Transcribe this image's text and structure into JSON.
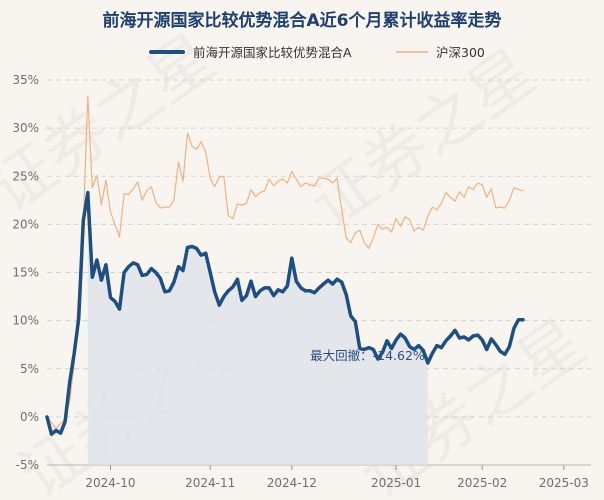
{
  "chart_data": {
    "type": "line",
    "title": "前海开源国家比较优势混合A近6个月累计收益率走势",
    "xlabel": "",
    "ylabel": "",
    "ylim": [
      -5,
      35
    ],
    "y_ticks": [
      "35%",
      "30%",
      "25%",
      "20%",
      "15%",
      "10%",
      "5%",
      "0%",
      "-5%"
    ],
    "y_tick_values": [
      35,
      30,
      25,
      20,
      15,
      10,
      5,
      0,
      -5
    ],
    "x_range": [
      0,
      120
    ],
    "x_ticks": [
      "2024-10",
      "2024-11",
      "2024-12",
      "2025-01",
      "2025-02",
      "2025-03"
    ],
    "x_tick_values": [
      14,
      36,
      54,
      77,
      96,
      114
    ],
    "grid": true,
    "legend_position": "top",
    "series": [
      {
        "name": "前海开源国家比较优势混合A",
        "color": "#1e4f82",
        "values": [
          0,
          -1.8,
          -1.4,
          -1.7,
          -0.5,
          3.6,
          6.6,
          10.2,
          20.4,
          23.3,
          14.5,
          16.3,
          14.2,
          15.8,
          12.4,
          12.0,
          11.2,
          15.0,
          15.6,
          16.0,
          15.8,
          14.7,
          14.8,
          15.4,
          15.0,
          14.4,
          13.0,
          13.1,
          14.0,
          15.6,
          15.2,
          17.6,
          17.7,
          17.5,
          16.8,
          17.0,
          15.0,
          13.0,
          11.6,
          12.5,
          13.1,
          13.5,
          14.3,
          12.1,
          12.6,
          14.1,
          12.5,
          13.1,
          13.4,
          13.4,
          12.6,
          13.2,
          13.0,
          13.6,
          16.5,
          14.1,
          13.4,
          13.1,
          13.1,
          12.9,
          13.4,
          13.8,
          14.2,
          13.8,
          14.3,
          14.0,
          12.7,
          10.5,
          9.9,
          7.1,
          7.0,
          7.2,
          7.0,
          6.0,
          6.7,
          7.9,
          7.1,
          8.0,
          8.6,
          8.2,
          7.3,
          7.0,
          7.4,
          6.9,
          5.6,
          6.6,
          7.4,
          7.2,
          7.9,
          8.4,
          9.0,
          8.2,
          8.3,
          8.0,
          8.4,
          8.5,
          8.0,
          7.0,
          8.1,
          7.5,
          6.8,
          6.5,
          7.3,
          9.2,
          10.1,
          10.1
        ],
        "line_width": 3.5
      },
      {
        "name": "沪深300",
        "color": "#f0b282",
        "values": [
          0,
          -0.6,
          -1.2,
          -0.7,
          -0.2,
          1.6,
          5.6,
          13.0,
          20.2,
          33.3,
          23.8,
          25.1,
          22.0,
          24.6,
          21.3,
          20.0,
          18.7,
          23.2,
          23.1,
          23.7,
          24.4,
          22.5,
          23.5,
          23.9,
          22.3,
          21.7,
          21.8,
          21.8,
          22.5,
          26.5,
          24.5,
          29.5,
          28.1,
          27.8,
          28.6,
          27.5,
          24.8,
          23.9,
          24.9,
          25.0,
          20.9,
          20.6,
          22.1,
          22.0,
          22.2,
          23.6,
          22.9,
          23.3,
          23.5,
          24.7,
          24.0,
          24.5,
          24.7,
          24.3,
          25.5,
          24.7,
          23.9,
          24.3,
          24.1,
          24.0,
          24.8,
          24.8,
          24.7,
          24.3,
          24.8,
          21.5,
          18.6,
          18.1,
          19.1,
          19.4,
          18.1,
          17.5,
          18.6,
          20.0,
          19.5,
          19.7,
          19.2,
          20.6,
          19.8,
          20.8,
          20.5,
          19.3,
          19.7,
          19.4,
          20.8,
          21.8,
          21.5,
          22.2,
          23.3,
          22.8,
          22.4,
          23.4,
          22.8,
          23.9,
          23.6,
          24.3,
          24.1,
          22.8,
          23.7,
          21.7,
          21.8,
          21.7,
          22.5,
          23.8,
          23.6,
          23.5
        ],
        "line_width": 1.2
      }
    ],
    "drawdown": {
      "label": "最大回撤：-14.62%",
      "start_index": 9,
      "end_index": 84,
      "fill_color": "#dce2ea"
    }
  },
  "watermark": {
    "texts": [
      "证券之星",
      "证券之星",
      "证券之星",
      "证券之星"
    ]
  }
}
